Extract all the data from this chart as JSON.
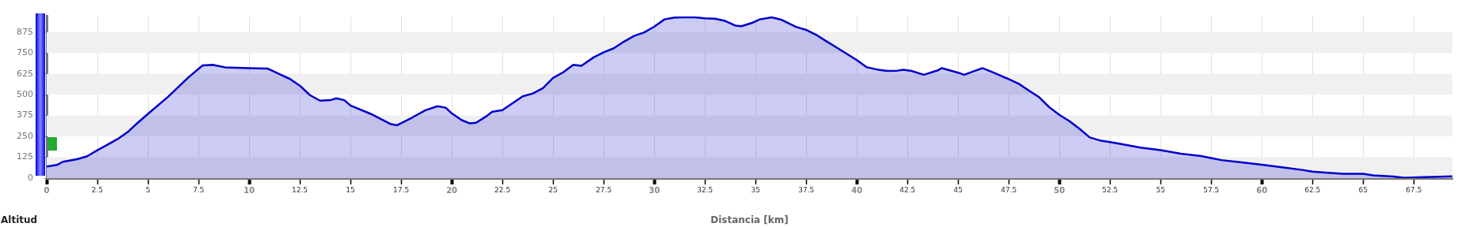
{
  "chart_data": {
    "type": "area",
    "xlabel": "Distancia [km]",
    "ylabel": "Altitud",
    "color": "#0000cc",
    "grid": true,
    "x": [
      0,
      0.5,
      0.8,
      1.5,
      2,
      2.5,
      3,
      3.5,
      4,
      4.5,
      5,
      6,
      7,
      7.7,
      8.2,
      8.8,
      10,
      10.9,
      11.5,
      12,
      12.5,
      13,
      13.5,
      14,
      14.3,
      14.7,
      15,
      16,
      17,
      17.3,
      18,
      18.7,
      19.3,
      19.7,
      20,
      20.5,
      20.9,
      21.2,
      21.7,
      22,
      22.5,
      23,
      23.5,
      24,
      24.5,
      25,
      25.5,
      26,
      26.4,
      27,
      27.5,
      28,
      28.5,
      29,
      29.5,
      30,
      30.5,
      31,
      31.5,
      32,
      32.5,
      33,
      33.5,
      34,
      34.3,
      34.8,
      35.2,
      35.8,
      36.3,
      37,
      37.5,
      38,
      38.5,
      39,
      39.5,
      40,
      40.5,
      41,
      41.5,
      42,
      42.3,
      42.7,
      43.3,
      44,
      44.2,
      45,
      45.3,
      45.8,
      46.2,
      46.8,
      47.5,
      48,
      48.5,
      49,
      49.5,
      50,
      50.5,
      51,
      51.5,
      52,
      52.5,
      53,
      54,
      55,
      56,
      57,
      58,
      59,
      60,
      61,
      62,
      62.5,
      63,
      64,
      65,
      65.5,
      66.5,
      67,
      68,
      69.4
    ],
    "values": [
      70,
      79,
      98,
      113,
      131,
      167,
      200,
      234,
      276,
      332,
      385,
      488,
      604,
      675,
      679,
      664,
      659,
      657,
      623,
      595,
      554,
      497,
      464,
      467,
      478,
      467,
      435,
      385,
      323,
      317,
      360,
      407,
      431,
      422,
      388,
      347,
      328,
      332,
      370,
      398,
      407,
      449,
      490,
      507,
      539,
      600,
      634,
      679,
      673,
      723,
      754,
      778,
      818,
      852,
      873,
      908,
      951,
      962,
      963,
      963,
      958,
      955,
      942,
      914,
      910,
      929,
      951,
      963,
      948,
      906,
      888,
      858,
      820,
      783,
      745,
      707,
      664,
      651,
      642,
      644,
      649,
      642,
      619,
      646,
      659,
      632,
      619,
      642,
      659,
      630,
      593,
      565,
      524,
      485,
      425,
      379,
      341,
      295,
      244,
      226,
      216,
      205,
      183,
      168,
      146,
      132,
      108,
      95,
      80,
      65,
      49,
      39,
      34,
      26,
      26,
      17,
      9,
      2,
      6,
      11
    ],
    "xlim": [
      0,
      69.4
    ],
    "xticks": [
      0,
      2.5,
      5,
      7.5,
      10,
      12.5,
      15,
      17.5,
      20,
      22.5,
      25,
      27.5,
      30,
      32.5,
      35,
      37.5,
      40,
      42.5,
      45,
      47.5,
      50,
      52.5,
      55,
      57.5,
      60,
      62.5,
      65,
      67.5
    ],
    "ylim": [
      0,
      970
    ],
    "yticks": [
      0,
      125,
      250,
      375,
      500,
      625,
      750,
      875
    ]
  }
}
